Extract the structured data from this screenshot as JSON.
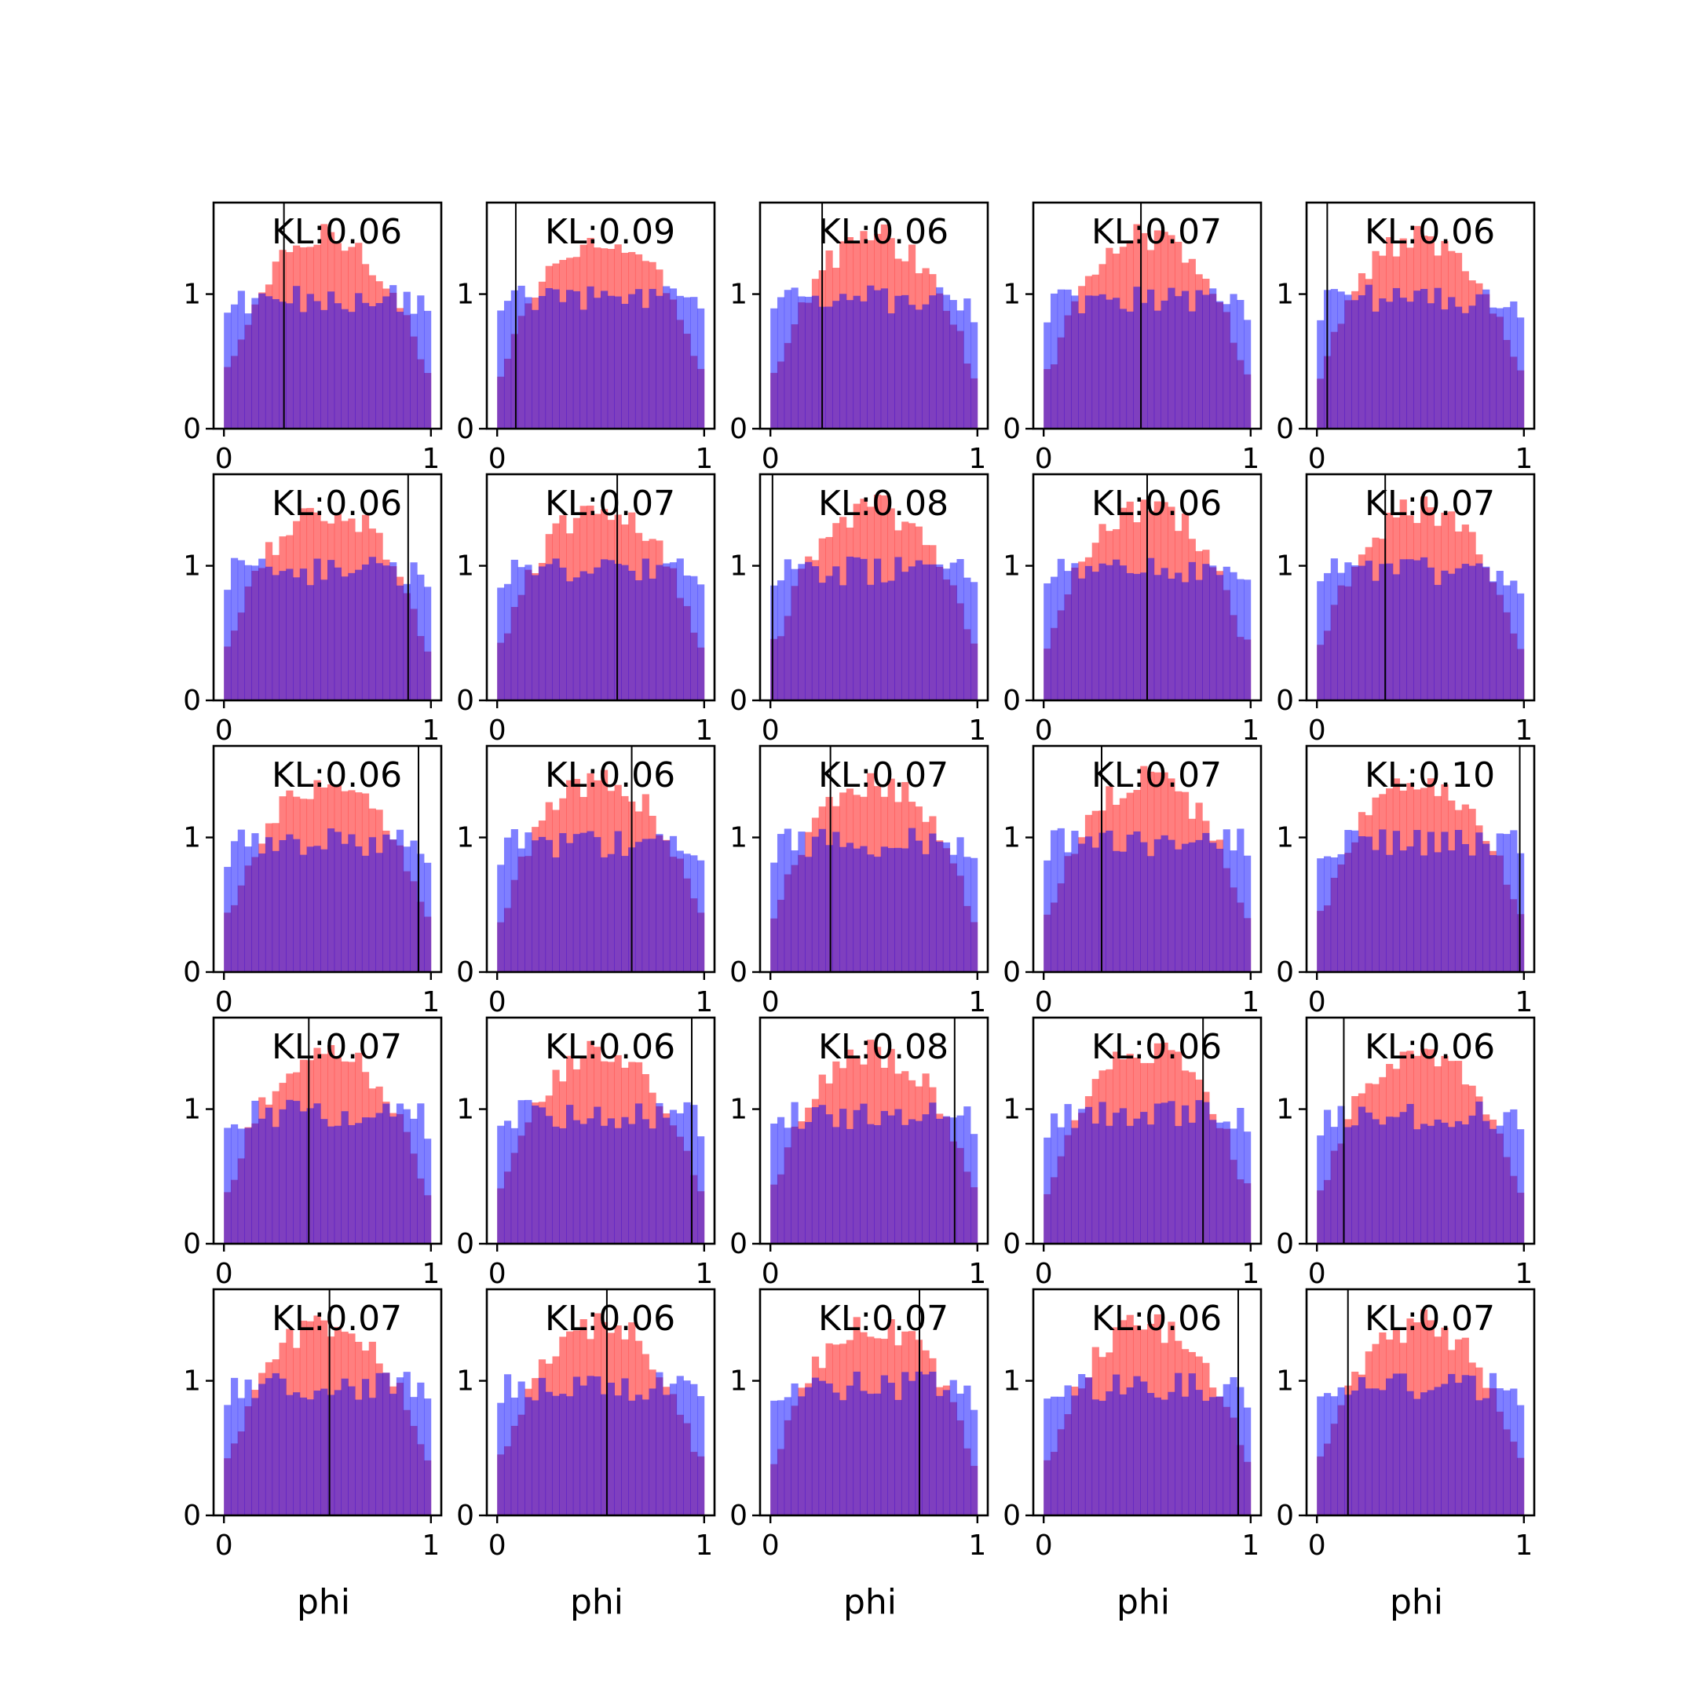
{
  "chart_data": {
    "type": "histogram-grid",
    "rows": 5,
    "cols": 5,
    "xlabel": "phi",
    "xlim": [
      -0.05,
      1.05
    ],
    "ylim": [
      0,
      1.68
    ],
    "xticks": [
      0,
      1
    ],
    "yticks": [
      0,
      1
    ],
    "bins": 30,
    "colors": {
      "red": "#ff0000",
      "blue": "#0000ff",
      "red_alpha": 0.5,
      "blue_alpha": 0.5,
      "line": "#000000"
    },
    "series": [
      {
        "name": "red",
        "color": "#ff0000"
      },
      {
        "name": "blue",
        "color": "#0000ff"
      }
    ],
    "panels": [
      {
        "kl": "KL:0.06",
        "vline": 0.29
      },
      {
        "kl": "KL:0.09",
        "vline": 0.09
      },
      {
        "kl": "KL:0.06",
        "vline": 0.25
      },
      {
        "kl": "KL:0.07",
        "vline": 0.47
      },
      {
        "kl": "KL:0.06",
        "vline": 0.05
      },
      {
        "kl": "KL:0.06",
        "vline": 0.89
      },
      {
        "kl": "KL:0.07",
        "vline": 0.58
      },
      {
        "kl": "KL:0.08",
        "vline": 0.01
      },
      {
        "kl": "KL:0.06",
        "vline": 0.5
      },
      {
        "kl": "KL:0.07",
        "vline": 0.33
      },
      {
        "kl": "KL:0.06",
        "vline": 0.94
      },
      {
        "kl": "KL:0.06",
        "vline": 0.65
      },
      {
        "kl": "KL:0.07",
        "vline": 0.29
      },
      {
        "kl": "KL:0.07",
        "vline": 0.28
      },
      {
        "kl": "KL:0.10",
        "vline": 0.98
      },
      {
        "kl": "KL:0.07",
        "vline": 0.41
      },
      {
        "kl": "KL:0.06",
        "vline": 0.94
      },
      {
        "kl": "KL:0.08",
        "vline": 0.89
      },
      {
        "kl": "KL:0.06",
        "vline": 0.77
      },
      {
        "kl": "KL:0.06",
        "vline": 0.13
      },
      {
        "kl": "KL:0.07",
        "vline": 0.51
      },
      {
        "kl": "KL:0.06",
        "vline": 0.53
      },
      {
        "kl": "KL:0.07",
        "vline": 0.72
      },
      {
        "kl": "KL:0.06",
        "vline": 0.94
      },
      {
        "kl": "KL:0.07",
        "vline": 0.15
      }
    ]
  }
}
